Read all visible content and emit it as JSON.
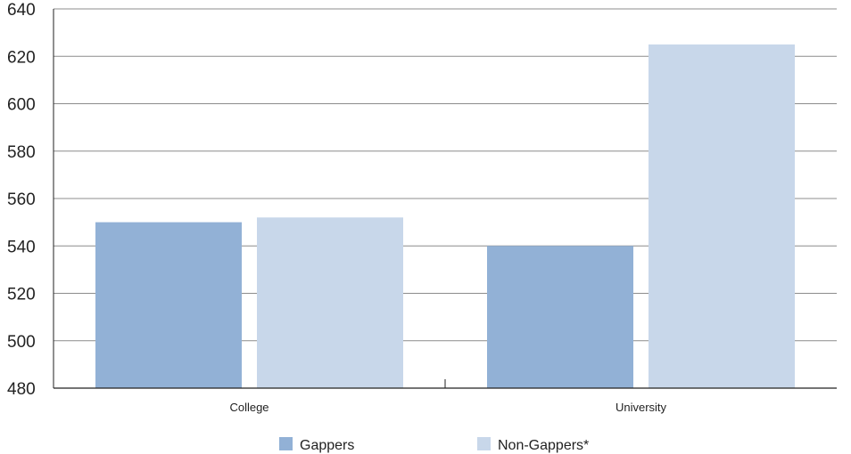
{
  "chart_data": {
    "type": "bar",
    "title": "",
    "xlabel": "",
    "ylabel": "",
    "categories": [
      "College",
      "University"
    ],
    "series": [
      {
        "name": "Gappers",
        "values": [
          550,
          540
        ],
        "color": "#92b1d6"
      },
      {
        "name": "Non-Gappers*",
        "values": [
          552,
          625
        ],
        "color": "#c8d7ea"
      }
    ],
    "ylim": [
      480,
      640
    ],
    "yticks": [
      480,
      500,
      520,
      540,
      560,
      580,
      600,
      620,
      640
    ],
    "grid": true,
    "legend_position": "bottom-center"
  }
}
